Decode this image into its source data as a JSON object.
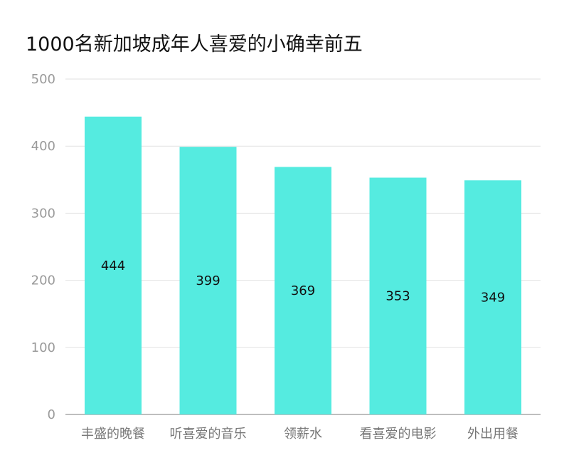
{
  "chart_data": {
    "type": "bar",
    "title": "1000名新加坡成年人喜爱的小确幸前五",
    "categories": [
      "丰盛的晚餐",
      "听喜爱的音乐",
      "领薪水",
      "看喜爱的电影",
      "外出用餐"
    ],
    "values": [
      444,
      399,
      369,
      353,
      349
    ],
    "data_labels": [
      "444",
      "399",
      "369",
      "353",
      "349"
    ],
    "yticks": [
      0,
      100,
      200,
      300,
      400,
      500
    ],
    "ylim": [
      0,
      500
    ],
    "xlabel": "",
    "ylabel": "",
    "grid": true,
    "legend": "none",
    "colors": {
      "bar": "#55ebe0",
      "grid": "#e2e2e2",
      "axis": "#a8a8a8"
    }
  }
}
